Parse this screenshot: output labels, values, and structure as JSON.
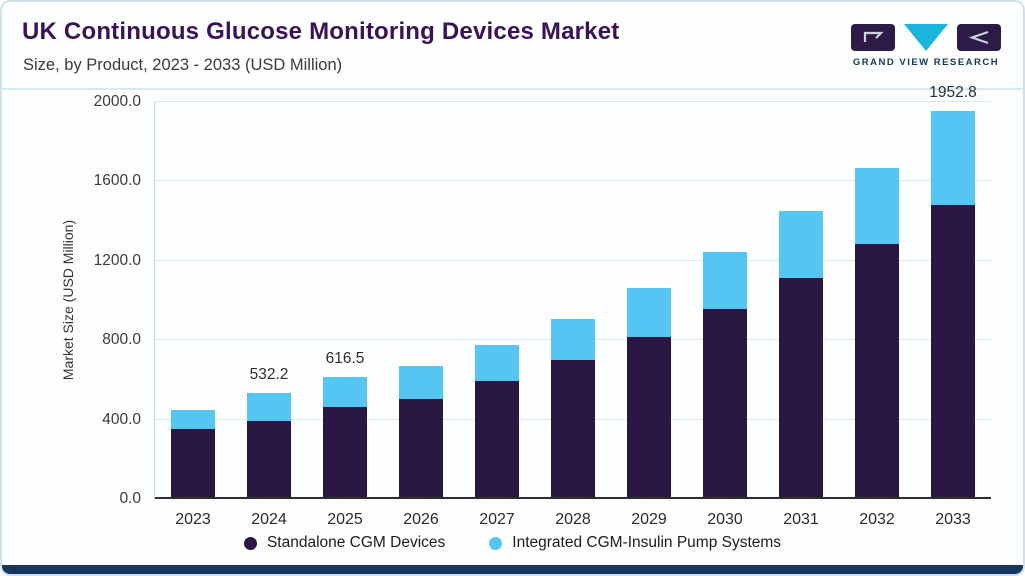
{
  "logo": {
    "text": "GRAND VIEW RESEARCH"
  },
  "chart_data": {
    "type": "bar",
    "stacked": true,
    "title": "UK Continuous Glucose Monitoring Devices Market",
    "subtitle": "Size, by Product, 2023 - 2033 (USD Million)",
    "categories": [
      "2023",
      "2024",
      "2025",
      "2026",
      "2027",
      "2028",
      "2029",
      "2030",
      "2031",
      "2032",
      "2033"
    ],
    "series": [
      {
        "name": "Standalone CGM Devices",
        "color": "#2b1743",
        "values": [
          355,
          395,
          462,
          505,
          595,
          700,
          815,
          955,
          1115,
          1285,
          1480
        ]
      },
      {
        "name": "Integrated CGM-Insulin Pump Systems",
        "color": "#55c6f2",
        "values": [
          95,
          137.2,
          154.5,
          165,
          180,
          205,
          250,
          290,
          335,
          385,
          472.8
        ]
      }
    ],
    "totals": [
      450,
      532.2,
      616.5,
      670,
      775,
      905,
      1065,
      1245,
      1450,
      1670,
      1952.8
    ],
    "bar_labels": [
      "",
      "532.2",
      "616.5",
      "",
      "",
      "",
      "",
      "",
      "",
      "",
      "1952.8"
    ],
    "ylabel": "Market Size (USD Million)",
    "ylim": [
      0,
      2000
    ],
    "yticks": [
      "0.0",
      "400.0",
      "800.0",
      "1200.0",
      "1600.0",
      "2000.0"
    ],
    "grid": true,
    "legend_position": "bottom"
  },
  "colors": {
    "title": "#3b1257",
    "standalone_purple": "#2b1743",
    "integrated_blue": "#55c6f2",
    "logo_triangle": "#1ab4dc",
    "bottom_bar": "#17365d",
    "grid_line": "#dde9f1",
    "axis_line": "#2f2f2f"
  }
}
